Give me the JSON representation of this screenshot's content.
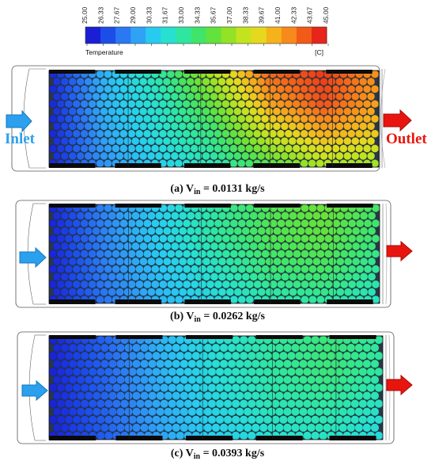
{
  "colorbar": {
    "title": "Temperature",
    "unit": "[C]",
    "ticks": [
      "25.00",
      "26.33",
      "27.67",
      "29.00",
      "30.33",
      "31.67",
      "33.00",
      "34.33",
      "35.67",
      "37.00",
      "38.33",
      "39.67",
      "41.00",
      "42.33",
      "43.67",
      "45.00"
    ],
    "colors": [
      "#1a1fd4",
      "#1d4de8",
      "#2a78f2",
      "#2ea3f6",
      "#28cbf0",
      "#27e0d0",
      "#2ee6a0",
      "#3fe56a",
      "#62e23c",
      "#93e226",
      "#c4e31f",
      "#e6d81d",
      "#f6b21b",
      "#f78a1a",
      "#f25a18",
      "#e8251a"
    ]
  },
  "panels": [
    {
      "caption_prefix": "(a) V",
      "caption_sub": "in",
      "caption_suffix": " = 0.0131 kg/s",
      "temps": [
        [
          25,
          29.5,
          33,
          38,
          43.5,
          44.5,
          42
        ],
        [
          25,
          29.5,
          32,
          36,
          41.5,
          44,
          41.5
        ],
        [
          25,
          29,
          31.5,
          34,
          38.5,
          41,
          40
        ],
        [
          25,
          28.5,
          30.5,
          32.5,
          35,
          37.5,
          37
        ]
      ]
    },
    {
      "caption_prefix": "(b) V",
      "caption_sub": "in",
      "caption_suffix": " = 0.0262 kg/s",
      "temps": [
        [
          25,
          28,
          30.5,
          33,
          35,
          36,
          34.5
        ],
        [
          25,
          28,
          30.5,
          33,
          35,
          35.5,
          34
        ],
        [
          25,
          27.8,
          30,
          32,
          34,
          34.5,
          33
        ],
        [
          25,
          27.5,
          29.5,
          31,
          32.5,
          33,
          32
        ]
      ]
    },
    {
      "caption_prefix": "(c) V",
      "caption_sub": "in",
      "caption_suffix": " = 0.0393 kg/s",
      "temps": [
        [
          25,
          27,
          29.5,
          31.5,
          33,
          34,
          33
        ],
        [
          25,
          27,
          29.5,
          31.5,
          33,
          34,
          33
        ],
        [
          25,
          27,
          29.2,
          31,
          32.5,
          33,
          32
        ],
        [
          25,
          26.8,
          29,
          30.5,
          31.5,
          32,
          31
        ]
      ]
    }
  ],
  "labels": {
    "inlet": "Inlet",
    "outlet": "Outlet",
    "inlet_color": "#2aa0ee",
    "outlet_color": "#e8150e"
  }
}
